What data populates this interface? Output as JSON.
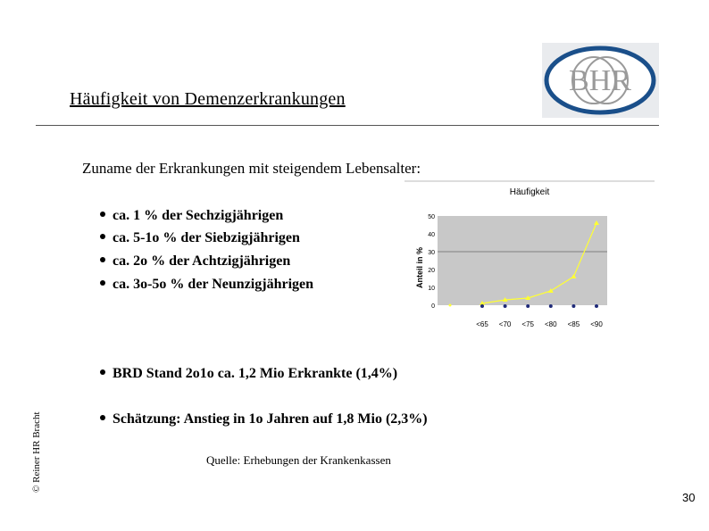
{
  "slide": {
    "title": "Häufigkeit von Demenzerkrankungen",
    "subtitle": "Zuname der Erkrankungen mit steigendem Lebensalter:",
    "bullets": [
      "ca. 1 % der Sechzigjährigen",
      "ca. 5-1o % der Siebzigjährigen",
      "ca. 2o % der Achtzigjährigen",
      "ca. 3o-5o % der Neunzigjährigen",
      "BRD Stand 2o1o ca. 1,2 Mio Erkrankte (1,4%)",
      "Schätzung: Anstieg in 1o Jahren auf 1,8 Mio (2,3%)"
    ],
    "source": "Quelle: Erhebungen der Krankenkassen",
    "copyright": "© Reiner HR Bracht",
    "page_number": "30",
    "logo_text": "BHR"
  },
  "colors": {
    "plot_bg": "#c8c8c8",
    "series_yellow": "#ffff33",
    "series_navy": "#1f2a78",
    "logo_ring": "#1a4f8a"
  },
  "chart_data": {
    "type": "line",
    "title": "Häufigkeit",
    "ylabel": "Anteil in %",
    "xlabel": "",
    "categories": [
      "<65",
      "<70",
      "<75",
      "<80",
      "<85",
      "<90"
    ],
    "yticks": [
      "0",
      "10",
      "20",
      "30",
      "40",
      "50"
    ],
    "ylim": [
      0,
      50
    ],
    "series": [
      {
        "name": "",
        "color": "#ffff33",
        "values": [
          1,
          3,
          4,
          8,
          16,
          46
        ]
      },
      {
        "name": "",
        "color": "#1f2a78",
        "values": [
          0,
          0,
          0,
          0,
          0,
          0
        ]
      }
    ]
  }
}
